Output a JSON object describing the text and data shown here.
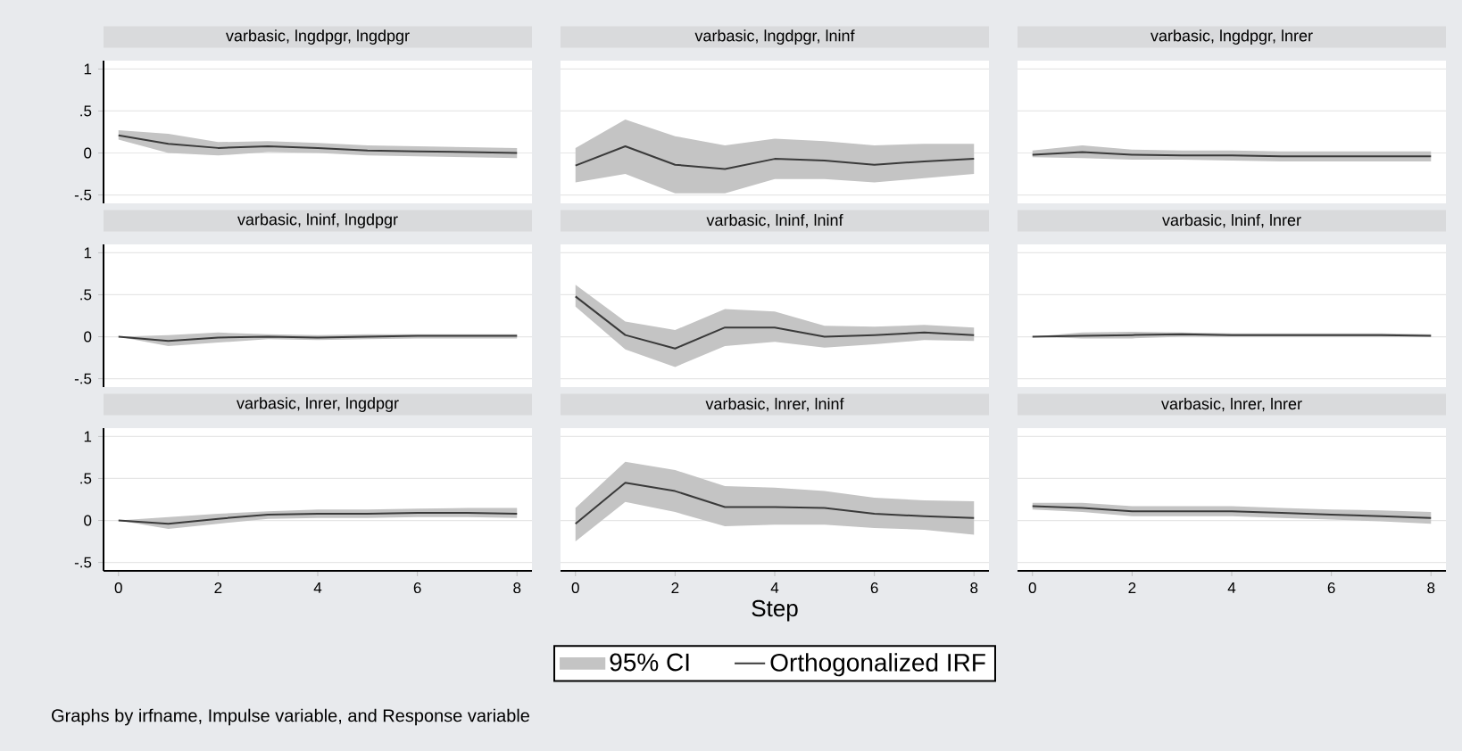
{
  "chart_data": [
    {
      "type": "line",
      "title": "varbasic, lngdpgr, lngdpgr",
      "x": [
        0,
        1,
        2,
        3,
        4,
        5,
        6,
        7,
        8
      ],
      "xlim": [
        -0.3,
        8.3
      ],
      "xticks": [
        0,
        2,
        4,
        6,
        8
      ],
      "ylim": [
        -0.6,
        1.1
      ],
      "yticks": [
        {
          "value": -0.5,
          "label": "-.5"
        },
        0,
        {
          "value": 0.5,
          "label": ".5"
        },
        1
      ],
      "grid": "y",
      "tick_labels": "y",
      "series": [
        {
          "type": "line",
          "color": "#3a3a3a",
          "values": [
            0.21,
            0.11,
            0.06,
            0.08,
            0.06,
            0.03,
            0.02,
            0.01,
            0.0
          ],
          "lower": [
            0.16,
            0.0,
            -0.03,
            0.01,
            0.0,
            -0.03,
            -0.04,
            -0.05,
            -0.06
          ],
          "upper": [
            0.27,
            0.23,
            0.13,
            0.14,
            0.12,
            0.09,
            0.08,
            0.07,
            0.06
          ]
        }
      ]
    },
    {
      "type": "line",
      "title": "varbasic, lngdpgr, lninf",
      "x": [
        0,
        1,
        2,
        3,
        4,
        5,
        6,
        7,
        8
      ],
      "xlim": [
        -0.3,
        8.3
      ],
      "xticks": [
        0,
        2,
        4,
        6,
        8
      ],
      "ylim": [
        -0.6,
        1.1
      ],
      "yticks": [
        {
          "value": -0.5,
          "label": null
        },
        {
          "value": 0,
          "label": null
        },
        {
          "value": 0.5,
          "label": null
        },
        {
          "value": 1,
          "label": null
        }
      ],
      "grid": "y",
      "tick_labels": false,
      "series": [
        {
          "type": "line",
          "color": "#3a3a3a",
          "values": [
            -0.15,
            0.08,
            -0.14,
            -0.19,
            -0.07,
            -0.09,
            -0.14,
            -0.1,
            -0.07
          ],
          "lower": [
            -0.35,
            -0.25,
            -0.48,
            -0.48,
            -0.31,
            -0.31,
            -0.35,
            -0.3,
            -0.25
          ],
          "upper": [
            0.06,
            0.4,
            0.2,
            0.09,
            0.17,
            0.14,
            0.09,
            0.11,
            0.11
          ]
        }
      ]
    },
    {
      "type": "line",
      "title": "varbasic, lngdpgr, lnrer",
      "x": [
        0,
        1,
        2,
        3,
        4,
        5,
        6,
        7,
        8
      ],
      "xlim": [
        -0.3,
        8.3
      ],
      "xticks": [
        0,
        2,
        4,
        6,
        8
      ],
      "ylim": [
        -0.6,
        1.1
      ],
      "yticks": [
        {
          "value": -0.5,
          "label": null
        },
        {
          "value": 0,
          "label": null
        },
        {
          "value": 0.5,
          "label": null
        },
        {
          "value": 1,
          "label": null
        }
      ],
      "grid": "y",
      "tick_labels": false,
      "series": [
        {
          "type": "line",
          "color": "#3a3a3a",
          "values": [
            -0.02,
            0.01,
            -0.02,
            -0.03,
            -0.03,
            -0.04,
            -0.04,
            -0.04,
            -0.04
          ],
          "lower": [
            -0.05,
            -0.06,
            -0.08,
            -0.08,
            -0.09,
            -0.1,
            -0.1,
            -0.1,
            -0.1
          ],
          "upper": [
            0.03,
            0.09,
            0.04,
            0.03,
            0.03,
            0.02,
            0.02,
            0.02,
            0.02
          ]
        }
      ]
    },
    {
      "type": "line",
      "title": "varbasic, lninf, lngdpgr",
      "x": [
        0,
        1,
        2,
        3,
        4,
        5,
        6,
        7,
        8
      ],
      "xlim": [
        -0.3,
        8.3
      ],
      "xticks": [
        0,
        2,
        4,
        6,
        8
      ],
      "ylim": [
        -0.6,
        1.1
      ],
      "yticks": [
        {
          "value": -0.5,
          "label": "-.5"
        },
        0,
        {
          "value": 0.5,
          "label": ".5"
        },
        1
      ],
      "grid": "y",
      "tick_labels": "y",
      "series": [
        {
          "type": "line",
          "color": "#3a3a3a",
          "values": [
            0,
            -0.05,
            -0.01,
            0.0,
            -0.01,
            0.0,
            0.01,
            0.01,
            0.01
          ],
          "lower": [
            0,
            -0.11,
            -0.07,
            -0.03,
            -0.04,
            -0.03,
            -0.02,
            -0.02,
            -0.02
          ],
          "upper": [
            0,
            0.02,
            0.05,
            0.03,
            0.02,
            0.03,
            0.03,
            0.03,
            0.03
          ]
        }
      ]
    },
    {
      "type": "line",
      "title": "varbasic, lninf, lninf",
      "x": [
        0,
        1,
        2,
        3,
        4,
        5,
        6,
        7,
        8
      ],
      "xlim": [
        -0.3,
        8.3
      ],
      "xticks": [
        0,
        2,
        4,
        6,
        8
      ],
      "ylim": [
        -0.6,
        1.1
      ],
      "yticks": [
        {
          "value": -0.5,
          "label": null
        },
        {
          "value": 0,
          "label": null
        },
        {
          "value": 0.5,
          "label": null
        },
        {
          "value": 1,
          "label": null
        }
      ],
      "grid": "y",
      "tick_labels": false,
      "series": [
        {
          "type": "line",
          "color": "#3a3a3a",
          "values": [
            0.48,
            0.02,
            -0.14,
            0.11,
            0.11,
            0.0,
            0.02,
            0.05,
            0.02
          ],
          "lower": [
            0.36,
            -0.15,
            -0.36,
            -0.11,
            -0.06,
            -0.13,
            -0.09,
            -0.04,
            -0.05
          ],
          "upper": [
            0.62,
            0.18,
            0.08,
            0.33,
            0.3,
            0.13,
            0.12,
            0.14,
            0.11
          ]
        }
      ]
    },
    {
      "type": "line",
      "title": "varbasic, lninf, lnrer",
      "x": [
        0,
        1,
        2,
        3,
        4,
        5,
        6,
        7,
        8
      ],
      "xlim": [
        -0.3,
        8.3
      ],
      "xticks": [
        0,
        2,
        4,
        6,
        8
      ],
      "ylim": [
        -0.6,
        1.1
      ],
      "yticks": [
        {
          "value": -0.5,
          "label": null
        },
        {
          "value": 0,
          "label": null
        },
        {
          "value": 0.5,
          "label": null
        },
        {
          "value": 1,
          "label": null
        }
      ],
      "grid": "y",
      "tick_labels": false,
      "series": [
        {
          "type": "line",
          "color": "#3a3a3a",
          "values": [
            0,
            0.01,
            0.02,
            0.03,
            0.02,
            0.02,
            0.02,
            0.02,
            0.01
          ],
          "lower": [
            0,
            -0.02,
            -0.02,
            0,
            0,
            0,
            0,
            0,
            0
          ],
          "upper": [
            0,
            0.05,
            0.06,
            0.05,
            0.04,
            0.04,
            0.04,
            0.04,
            0.03
          ]
        }
      ]
    },
    {
      "type": "line",
      "title": "varbasic, lnrer, lngdpgr",
      "x": [
        0,
        1,
        2,
        3,
        4,
        5,
        6,
        7,
        8
      ],
      "xlim": [
        -0.3,
        8.3
      ],
      "xticks": [
        0,
        2,
        4,
        6,
        8
      ],
      "ylim": [
        -0.6,
        1.1
      ],
      "yticks": [
        {
          "value": -0.5,
          "label": "-.5"
        },
        0,
        {
          "value": 0.5,
          "label": ".5"
        },
        1
      ],
      "grid": "y",
      "series": [
        {
          "type": "line",
          "color": "#3a3a3a",
          "values": [
            0,
            -0.04,
            0.02,
            0.07,
            0.08,
            0.08,
            0.09,
            0.09,
            0.08
          ],
          "lower": [
            0,
            -0.1,
            -0.04,
            0.02,
            0.03,
            0.03,
            0.04,
            0.04,
            0.03
          ],
          "upper": [
            0,
            0.04,
            0.08,
            0.11,
            0.13,
            0.13,
            0.14,
            0.15,
            0.15
          ]
        }
      ]
    },
    {
      "type": "line",
      "title": "varbasic, lnrer, lninf",
      "xlabel": "Step",
      "x": [
        0,
        1,
        2,
        3,
        4,
        5,
        6,
        7,
        8
      ],
      "xlim": [
        -0.3,
        8.3
      ],
      "xticks": [
        0,
        2,
        4,
        6,
        8
      ],
      "ylim": [
        -0.6,
        1.1
      ],
      "yticks": [
        {
          "value": -0.5,
          "label": null
        },
        {
          "value": 0,
          "label": null
        },
        {
          "value": 0.5,
          "label": null
        },
        {
          "value": 1,
          "label": null
        }
      ],
      "grid": "y",
      "tick_labels": "x",
      "legend": "bottom",
      "annotations": [
        "95% CI",
        "Graphs by irfname, Impulse variable, and Response variable"
      ],
      "series": [
        {
          "name": "Orthogonalized IRF",
          "type": "line",
          "color": "#3a3a3a",
          "values": [
            -0.04,
            0.45,
            0.35,
            0.16,
            0.16,
            0.15,
            0.08,
            0.05,
            0.03
          ],
          "lower": [
            -0.25,
            0.22,
            0.1,
            -0.07,
            -0.05,
            -0.05,
            -0.09,
            -0.11,
            -0.17
          ],
          "upper": [
            0.15,
            0.7,
            0.6,
            0.41,
            0.39,
            0.35,
            0.27,
            0.24,
            0.23
          ]
        }
      ]
    },
    {
      "type": "line",
      "title": "varbasic, lnrer, lnrer",
      "x": [
        0,
        1,
        2,
        3,
        4,
        5,
        6,
        7,
        8
      ],
      "xlim": [
        -0.3,
        8.3
      ],
      "xticks": [
        0,
        2,
        4,
        6,
        8
      ],
      "ylim": [
        -0.6,
        1.1
      ],
      "yticks": [
        {
          "value": -0.5,
          "label": null
        },
        {
          "value": 0,
          "label": null
        },
        {
          "value": 0.5,
          "label": null
        },
        {
          "value": 1,
          "label": null
        }
      ],
      "grid": "y",
      "tick_labels": "x",
      "series": [
        {
          "type": "line",
          "color": "#3a3a3a",
          "values": [
            0.17,
            0.15,
            0.11,
            0.11,
            0.11,
            0.09,
            0.07,
            0.05,
            0.03
          ],
          "lower": [
            0.13,
            0.1,
            0.05,
            0.05,
            0.05,
            0.03,
            0.01,
            -0.01,
            -0.04
          ],
          "upper": [
            0.21,
            0.21,
            0.17,
            0.17,
            0.17,
            0.15,
            0.13,
            0.12,
            0.1
          ]
        }
      ]
    }
  ]
}
